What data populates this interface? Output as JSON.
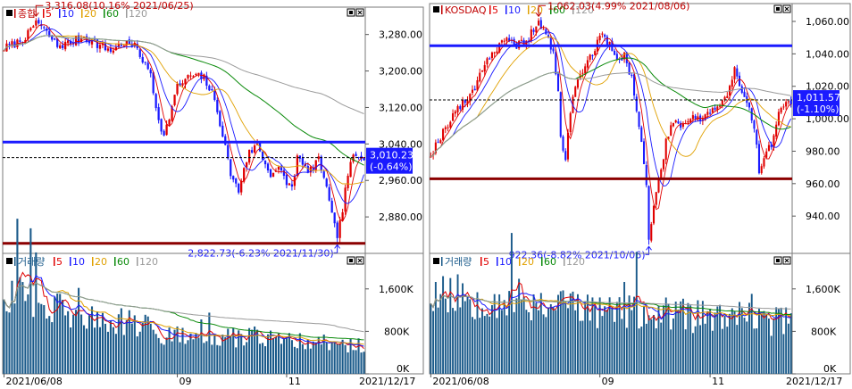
{
  "panels": [
    {
      "id": "kospi",
      "price": {
        "title": "종합",
        "ma_legend": [
          {
            "label": "5",
            "color": "#e00000"
          },
          {
            "label": "10",
            "color": "#1a1aff"
          },
          {
            "label": "20",
            "color": "#e0a000"
          },
          {
            "label": "60",
            "color": "#0a8a0a"
          },
          {
            "label": "120",
            "color": "#9a9a9a"
          }
        ],
        "y_ticks": [
          "3,280.00",
          "3,200.00",
          "3,120.00",
          "3,040.00",
          "2,960.00",
          "2,880.00"
        ],
        "y_tick_values": [
          3280,
          3200,
          3120,
          3040,
          2960,
          2880
        ],
        "ylim": [
          2800,
          3340
        ],
        "annot_high": "3,316.08(10.16% 2021/06/25)",
        "annot_low": "2,822.73(-6.23% 2021/11/30)",
        "current_value": "3,010.23",
        "current_change": "(-0.64%)",
        "hlines": [
          {
            "value": 3044,
            "color": "#1a1aff"
          },
          {
            "value": 2822,
            "color": "#8b0000"
          },
          {
            "value": 3010,
            "color": "#000000",
            "dashed": true
          }
        ],
        "high": {
          "index": 12,
          "value": 3316.08
        },
        "low": {
          "index": 125,
          "value": 2822.73
        },
        "path": [
          [
            0,
            3250
          ],
          [
            5,
            3262
          ],
          [
            10,
            3285
          ],
          [
            12,
            3310
          ],
          [
            15,
            3290
          ],
          [
            20,
            3255
          ],
          [
            25,
            3262
          ],
          [
            30,
            3275
          ],
          [
            35,
            3258
          ],
          [
            40,
            3245
          ],
          [
            45,
            3262
          ],
          [
            50,
            3250
          ],
          [
            53,
            3210
          ],
          [
            55,
            3195
          ],
          [
            57,
            3120
          ],
          [
            60,
            3055
          ],
          [
            62,
            3100
          ],
          [
            65,
            3165
          ],
          [
            70,
            3190
          ],
          [
            75,
            3185
          ],
          [
            78,
            3150
          ],
          [
            80,
            3115
          ],
          [
            82,
            3060
          ],
          [
            85,
            2975
          ],
          [
            88,
            2935
          ],
          [
            90,
            2990
          ],
          [
            92,
            3020
          ],
          [
            95,
            3040
          ],
          [
            98,
            2995
          ],
          [
            100,
            2975
          ],
          [
            103,
            2985
          ],
          [
            106,
            2955
          ],
          [
            108,
            2945
          ],
          [
            110,
            3010
          ],
          [
            113,
            2985
          ],
          [
            116,
            2985
          ],
          [
            118,
            3005
          ],
          [
            120,
            2970
          ],
          [
            123,
            2880
          ],
          [
            125,
            2835
          ],
          [
            127,
            2895
          ],
          [
            129,
            2975
          ],
          [
            131,
            3010
          ],
          [
            134,
            3010
          ]
        ]
      },
      "volume": {
        "title": "거래량",
        "ma_legend": [
          {
            "label": "5",
            "color": "#e00000"
          },
          {
            "label": "10",
            "color": "#1a1aff"
          },
          {
            "label": "20",
            "color": "#e0a000"
          },
          {
            "label": "60",
            "color": "#0a8a0a"
          },
          {
            "label": "120",
            "color": "#9a9a9a"
          }
        ],
        "y_ticks": [
          "1,600K",
          "800K",
          "0K"
        ],
        "y_tick_values": [
          1600,
          800,
          0
        ],
        "ylim": [
          0,
          2000
        ],
        "path": [
          [
            0,
            1650
          ],
          [
            5,
            1500
          ],
          [
            10,
            1350
          ],
          [
            15,
            1250
          ],
          [
            20,
            1200
          ],
          [
            25,
            1150
          ],
          [
            35,
            1050
          ],
          [
            50,
            900
          ],
          [
            60,
            780
          ],
          [
            75,
            700
          ],
          [
            90,
            650
          ],
          [
            105,
            620
          ],
          [
            120,
            600
          ],
          [
            134,
            520
          ]
        ]
      },
      "x_labels": [
        {
          "text": "2021/06/08",
          "index": 2
        },
        {
          "text": "09",
          "index": 65
        },
        {
          "text": "11",
          "index": 106
        }
      ],
      "end_date": "2021/12/17"
    },
    {
      "id": "kosdaq",
      "price": {
        "title": "KOSDAQ",
        "ma_legend": [
          {
            "label": "5",
            "color": "#e00000"
          },
          {
            "label": "10",
            "color": "#1a1aff"
          },
          {
            "label": "20",
            "color": "#e0a000"
          },
          {
            "label": "60",
            "color": "#0a8a0a"
          },
          {
            "label": "120",
            "color": "#9a9a9a"
          }
        ],
        "y_ticks": [
          "1,060.00",
          "1,040.00",
          "1,020.00",
          "1,000.00",
          "980.00",
          "960.00",
          "940.00"
        ],
        "y_tick_values": [
          1060,
          1040,
          1020,
          1000,
          980,
          960,
          940
        ],
        "ylim": [
          917,
          1071
        ],
        "annot_high": "1,062.03(4.99% 2021/08/06)",
        "annot_low": "922.36(-8.82% 2021/10/06)",
        "current_value": "1,011.57",
        "current_change": "(-1.10%)",
        "hlines": [
          {
            "value": 1045,
            "color": "#1a1aff"
          },
          {
            "value": 963,
            "color": "#8b0000"
          },
          {
            "value": 1011.57,
            "color": "#000000",
            "dashed": true
          }
        ],
        "high": {
          "index": 44,
          "value": 1062.03
        },
        "low": {
          "index": 89,
          "value": 922.36
        },
        "path": [
          [
            0,
            978
          ],
          [
            5,
            992
          ],
          [
            10,
            1005
          ],
          [
            15,
            1012
          ],
          [
            18,
            1020
          ],
          [
            22,
            1035
          ],
          [
            25,
            1040
          ],
          [
            30,
            1048
          ],
          [
            35,
            1045
          ],
          [
            40,
            1050
          ],
          [
            44,
            1060
          ],
          [
            47,
            1052
          ],
          [
            50,
            1040
          ],
          [
            52,
            1015
          ],
          [
            53,
            990
          ],
          [
            55,
            975
          ],
          [
            57,
            1005
          ],
          [
            60,
            1025
          ],
          [
            65,
            1038
          ],
          [
            70,
            1052
          ],
          [
            73,
            1045
          ],
          [
            76,
            1035
          ],
          [
            79,
            1040
          ],
          [
            82,
            1025
          ],
          [
            84,
            1005
          ],
          [
            86,
            985
          ],
          [
            88,
            958
          ],
          [
            89,
            928
          ],
          [
            91,
            945
          ],
          [
            93,
            962
          ],
          [
            96,
            985
          ],
          [
            99,
            1000
          ],
          [
            102,
            995
          ],
          [
            106,
            1002
          ],
          [
            110,
            1000
          ],
          [
            114,
            1005
          ],
          [
            118,
            1008
          ],
          [
            121,
            1015
          ],
          [
            124,
            1030
          ],
          [
            127,
            1015
          ],
          [
            130,
            1005
          ],
          [
            133,
            985
          ],
          [
            134,
            968
          ],
          [
            136,
            978
          ],
          [
            139,
            985
          ],
          [
            142,
            1002
          ],
          [
            145,
            1011
          ]
        ]
      },
      "volume": {
        "title": "거래량",
        "ma_legend": [
          {
            "label": "5",
            "color": "#e00000"
          },
          {
            "label": "10",
            "color": "#1a1aff"
          },
          {
            "label": "20",
            "color": "#e0a000"
          },
          {
            "label": "60",
            "color": "#0a8a0a"
          },
          {
            "label": "120",
            "color": "#9a9a9a"
          }
        ],
        "y_ticks": [
          "1,600K",
          "800K",
          "0K"
        ],
        "y_tick_values": [
          1600,
          800,
          0
        ],
        "ylim": [
          0,
          2000
        ],
        "path": [
          [
            0,
            1550
          ],
          [
            10,
            1500
          ],
          [
            20,
            1450
          ],
          [
            30,
            1430
          ],
          [
            40,
            1350
          ],
          [
            50,
            1320
          ],
          [
            60,
            1250
          ],
          [
            70,
            1200
          ],
          [
            80,
            1150
          ],
          [
            90,
            1120
          ],
          [
            100,
            1100
          ],
          [
            110,
            1080
          ],
          [
            120,
            1060
          ],
          [
            130,
            1030
          ],
          [
            140,
            1000
          ],
          [
            145,
            990
          ]
        ]
      },
      "x_labels": [
        {
          "text": "2021/06/08",
          "index": 2
        },
        {
          "text": "09",
          "index": 69
        },
        {
          "text": "11",
          "index": 114
        }
      ],
      "end_date": "2021/12/17"
    }
  ],
  "chart_data": [
    {
      "type": "candlestick",
      "title": "종합",
      "series_names": [
        "5",
        "10",
        "20",
        "60",
        "120"
      ],
      "ylim": [
        2800,
        3340
      ],
      "y_ticks": [
        3280,
        3200,
        3120,
        3040,
        2960,
        2880
      ],
      "x_tick_labels": [
        "2021/06/08",
        "09",
        "11",
        "2021/12/17"
      ],
      "annotations": [
        "3,316.08(10.16% 2021/06/25)",
        "2,822.73(-6.23% 2021/11/30)"
      ],
      "last": {
        "value": 3010.23,
        "change_pct": -0.64
      },
      "high": {
        "date": "2021/06/25",
        "value": 3316.08
      },
      "low": {
        "date": "2021/11/30",
        "value": 2822.73
      },
      "horizontal_lines": [
        3044,
        2822
      ]
    },
    {
      "type": "bar",
      "title": "거래량",
      "series_names": [
        "5",
        "10",
        "20",
        "60",
        "120"
      ],
      "ylim": [
        0,
        2000
      ],
      "y_ticks": [
        "1,600K",
        "800K",
        "0K"
      ]
    },
    {
      "type": "candlestick",
      "title": "KOSDAQ",
      "series_names": [
        "5",
        "10",
        "20",
        "60",
        "120"
      ],
      "ylim": [
        917,
        1071
      ],
      "y_ticks": [
        1060,
        1040,
        1020,
        1000,
        980,
        960,
        940
      ],
      "x_tick_labels": [
        "2021/06/08",
        "09",
        "11",
        "2021/12/17"
      ],
      "annotations": [
        "1,062.03(4.99% 2021/08/06)",
        "922.36(-8.82% 2021/10/06)"
      ],
      "last": {
        "value": 1011.57,
        "change_pct": -1.1
      },
      "high": {
        "date": "2021/08/06",
        "value": 1062.03
      },
      "low": {
        "date": "2021/10/06",
        "value": 922.36
      },
      "horizontal_lines": [
        1045,
        963
      ]
    },
    {
      "type": "bar",
      "title": "거래량",
      "series_names": [
        "5",
        "10",
        "20",
        "60",
        "120"
      ],
      "ylim": [
        0,
        2000
      ],
      "y_ticks": [
        "1,600K",
        "800K",
        "0K"
      ]
    }
  ]
}
